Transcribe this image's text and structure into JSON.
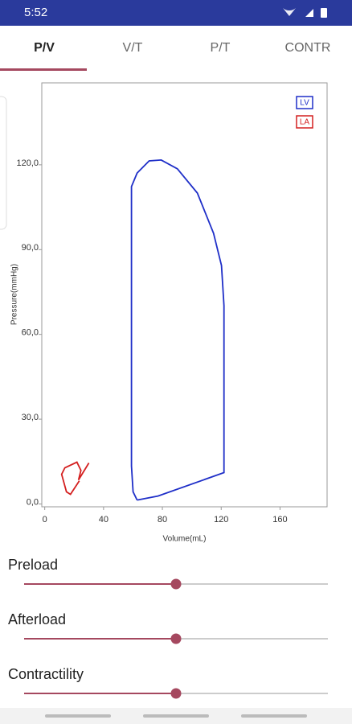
{
  "status_bar": {
    "time": "5:52"
  },
  "tabs": [
    "P/V",
    "V/T",
    "P/T",
    "CONTR"
  ],
  "chart_data": {
    "type": "line",
    "x_label": "Volume(mL)",
    "y_label": "Pressure(mmHg)",
    "xlim": [
      -2,
      192
    ],
    "xticks": [
      0,
      40,
      80,
      120,
      160
    ],
    "ylim": [
      -1,
      149
    ],
    "yticks": [
      {
        "value": 0,
        "label": "0,0"
      },
      {
        "value": 30,
        "label": "30,0"
      },
      {
        "value": 60,
        "label": "60,0"
      },
      {
        "value": 90,
        "label": "90,0"
      },
      {
        "value": 120,
        "label": "120,0"
      }
    ],
    "legend": "top-right",
    "series": [
      {
        "name": "LV",
        "color": "#1f2fc8",
        "x": [
          62.8,
          77,
          121.9,
          121.9,
          120.2,
          114.8,
          103.8,
          90.2,
          79.2,
          71,
          62.8,
          59,
          59,
          60.1,
          62.8
        ],
        "y": [
          1.4,
          2.8,
          11.1,
          70.2,
          84.4,
          95.8,
          110,
          118.6,
          121.7,
          121.4,
          117.1,
          112.3,
          13.4,
          4.3,
          1.4
        ]
      },
      {
        "name": "LA",
        "color": "#d42020",
        "x": [
          23.5,
          17.5,
          14.8,
          11.5,
          13.7,
          21.9,
          24.6,
          23,
          30
        ],
        "y": [
          8.2,
          3.4,
          4.3,
          10.5,
          12.8,
          14.8,
          11.9,
          8.5,
          14.5
        ]
      }
    ]
  },
  "sliders": [
    "Preload",
    "Afterload",
    "Contractility"
  ]
}
